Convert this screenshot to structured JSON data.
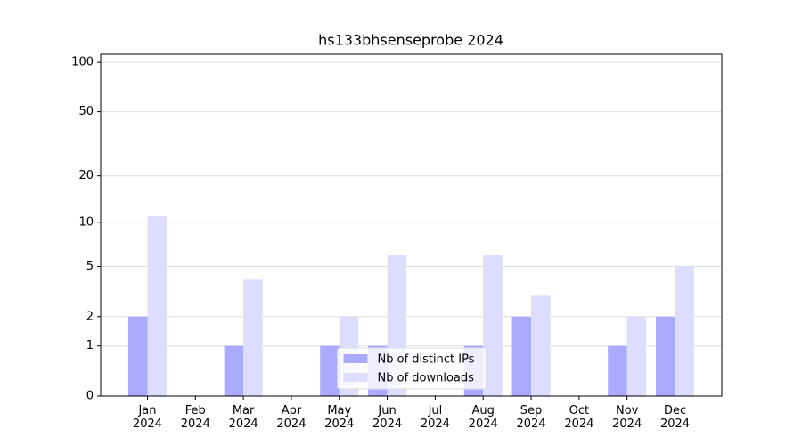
{
  "chart_data": {
    "type": "bar",
    "title": "hs133bhsenseprobe 2024",
    "categories": [
      "Jan 2024",
      "Feb 2024",
      "Mar 2024",
      "Apr 2024",
      "May 2024",
      "Jun 2024",
      "Jul 2024",
      "Aug 2024",
      "Sep 2024",
      "Oct 2024",
      "Nov 2024",
      "Dec 2024"
    ],
    "series": [
      {
        "name": "Nb of distinct IPs",
        "color": "#aaaaff",
        "values": [
          2,
          0,
          1,
          0,
          1,
          1,
          0,
          1,
          2,
          0,
          1,
          2
        ]
      },
      {
        "name": "Nb of downloads",
        "color": "#ddddff",
        "values": [
          11,
          0,
          4,
          0,
          2,
          6,
          0,
          6,
          3,
          0,
          2,
          5
        ]
      }
    ],
    "yscale": "log1p",
    "ylim": [
      0,
      112
    ],
    "yticks": [
      0,
      1,
      2,
      5,
      10,
      20,
      50,
      100
    ],
    "grid": true,
    "legend": "lower center"
  }
}
